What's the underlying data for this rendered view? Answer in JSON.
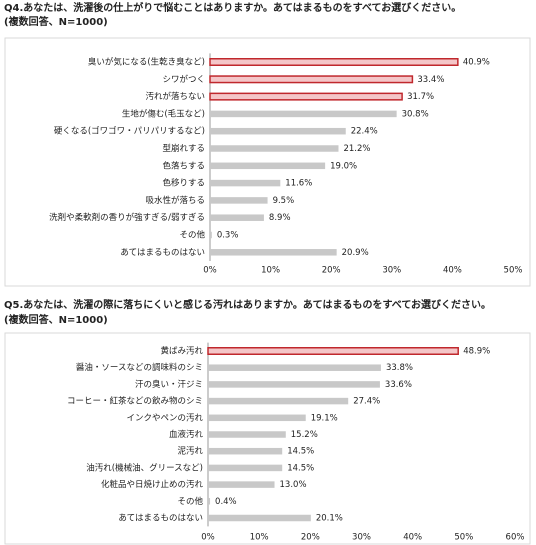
{
  "chart_data": [
    {
      "type": "barh",
      "title": "Q4.あなたは、洗濯後の仕上がりで悩むことはありますか。あてはまるものをすべてお選びください。",
      "subtitle": "(複数回答、N=1000)",
      "categories": [
        "臭いが気になる(生乾き臭など)",
        "シワがつく",
        "汚れが落ちない",
        "生地が傷む(毛玉など)",
        "硬くなる(ゴワゴワ・パリパリするなど)",
        "型崩れする",
        "色落ちする",
        "色移りする",
        "吸水性が落ちる",
        "洗剤や柔軟剤の香りが強すぎる/弱すぎる",
        "その他",
        "あてはまるものはない"
      ],
      "values": [
        40.9,
        33.4,
        31.7,
        30.8,
        22.4,
        21.2,
        19.0,
        11.6,
        9.5,
        8.9,
        0.3,
        20.9
      ],
      "value_labels": [
        "40.9%",
        "33.4%",
        "31.7%",
        "30.8%",
        "22.4%",
        "21.2%",
        "19.0%",
        "11.6%",
        "9.5%",
        "8.9%",
        "0.3%",
        "20.9%"
      ],
      "colors": [
        "#f4c6c8",
        "#f4c6c8",
        "#f4c6c8",
        "#c8c8c8",
        "#c8c8c8",
        "#c8c8c8",
        "#c8c8c8",
        "#c8c8c8",
        "#c8c8c8",
        "#c8c8c8",
        "#c8c8c8",
        "#c8c8c8"
      ],
      "edgecolors": [
        "#c0282d",
        "#c0282d",
        "#c0282d",
        null,
        null,
        null,
        null,
        null,
        null,
        null,
        null,
        null
      ],
      "xlim": [
        0,
        50
      ],
      "xticks": [
        {
          "value": 0,
          "label": "0%"
        },
        {
          "value": 10,
          "label": "10%"
        },
        {
          "value": 20,
          "label": "20%"
        },
        {
          "value": 30,
          "label": "30%"
        },
        {
          "value": 40,
          "label": "40%"
        },
        {
          "value": 50,
          "label": "50%"
        }
      ]
    },
    {
      "type": "barh",
      "title": "Q5.あなたは、洗濯の際に落ちにくいと感じる汚れはありますか。あてはまるものをすべてお選びください。",
      "subtitle": "(複数回答、N=1000)",
      "categories": [
        "黄ばみ汚れ",
        "醤油・ソースなどの調味料のシミ",
        "汗の臭い・汗ジミ",
        "コーヒー・紅茶などの飲み物のシミ",
        "インクやペンの汚れ",
        "血液汚れ",
        "泥汚れ",
        "油汚れ(機械油、グリースなど)",
        "化粧品や日焼け止めの汚れ",
        "その他",
        "あてはまるものはない"
      ],
      "values": [
        48.9,
        33.8,
        33.6,
        27.4,
        19.1,
        15.2,
        14.5,
        14.5,
        13.0,
        0.4,
        20.1
      ],
      "value_labels": [
        "48.9%",
        "33.8%",
        "33.6%",
        "27.4%",
        "19.1%",
        "15.2%",
        "14.5%",
        "14.5%",
        "13.0%",
        "0.4%",
        "20.1%"
      ],
      "colors": [
        "#f4c6c8",
        "#c8c8c8",
        "#c8c8c8",
        "#c8c8c8",
        "#c8c8c8",
        "#c8c8c8",
        "#c8c8c8",
        "#c8c8c8",
        "#c8c8c8",
        "#c8c8c8",
        "#c8c8c8"
      ],
      "edgecolors": [
        "#c0282d",
        null,
        null,
        null,
        null,
        null,
        null,
        null,
        null,
        null,
        null
      ],
      "xlim": [
        0,
        60
      ],
      "xticks": [
        {
          "value": 0,
          "label": "0%"
        },
        {
          "value": 10,
          "label": "10%"
        },
        {
          "value": 20,
          "label": "20%"
        },
        {
          "value": 30,
          "label": "30%"
        },
        {
          "value": 40,
          "label": "40%"
        },
        {
          "value": 50,
          "label": "50%"
        },
        {
          "value": 60,
          "label": "60%"
        }
      ]
    }
  ]
}
